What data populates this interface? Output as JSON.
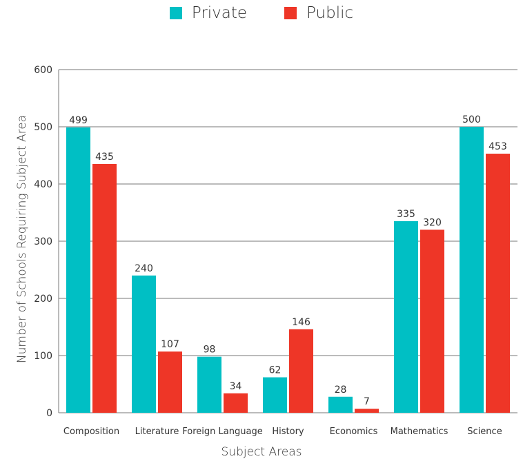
{
  "legend": {
    "private_label": "Private",
    "public_label": "Public"
  },
  "colors": {
    "private": "#00BFC4",
    "public": "#EE3627",
    "grid": "#777777"
  },
  "chart_data": {
    "type": "bar",
    "title": "",
    "xlabel": "Subject Areas",
    "ylabel": "Number of Schools Requiring Subject Area",
    "categories": [
      "Composition",
      "Literature",
      "Foreign Language",
      "History",
      "Economics",
      "Mathematics",
      "Science"
    ],
    "series": [
      {
        "name": "Private",
        "values": [
          499,
          240,
          98,
          62,
          28,
          335,
          500
        ]
      },
      {
        "name": "Public",
        "values": [
          435,
          107,
          34,
          146,
          7,
          320,
          453
        ]
      }
    ],
    "ylim": [
      0,
      600
    ],
    "yticks": [
      0,
      100,
      200,
      300,
      400,
      500,
      600
    ],
    "grid": true,
    "legend_position": "top-center"
  }
}
